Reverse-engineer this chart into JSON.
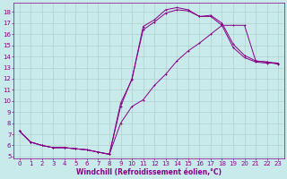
{
  "background_color": "#c8eaea",
  "line_color": "#880088",
  "grid_color": "#b0c8c8",
  "xlabel": "Windchill (Refroidissement éolien,°C)",
  "xlabel_fontsize": 5.5,
  "tick_fontsize": 5.0,
  "xlim": [
    -0.5,
    23.5
  ],
  "ylim": [
    4.8,
    18.8
  ],
  "yticks": [
    5,
    6,
    7,
    8,
    9,
    10,
    11,
    12,
    13,
    14,
    15,
    16,
    17,
    18
  ],
  "xticks": [
    0,
    1,
    2,
    3,
    4,
    5,
    6,
    7,
    8,
    9,
    10,
    11,
    12,
    13,
    14,
    15,
    16,
    17,
    18,
    19,
    20,
    21,
    22,
    23
  ],
  "line1_x": [
    0,
    1,
    2,
    3,
    4,
    5,
    6,
    7,
    8,
    9,
    10,
    11,
    12,
    13,
    14,
    15,
    16,
    17,
    18,
    19,
    20,
    21,
    22,
    23
  ],
  "line1_y": [
    7.3,
    6.3,
    6.0,
    5.8,
    5.8,
    5.7,
    5.6,
    5.4,
    5.2,
    9.5,
    12.0,
    16.4,
    17.1,
    17.9,
    18.2,
    18.1,
    17.6,
    17.6,
    16.8,
    14.8,
    13.9,
    13.5,
    13.4,
    13.4
  ],
  "line2_x": [
    0,
    1,
    2,
    3,
    4,
    5,
    6,
    7,
    8,
    9,
    10,
    11,
    12,
    13,
    14,
    15,
    16,
    17,
    18,
    19,
    20,
    21,
    22,
    23
  ],
  "line2_y": [
    7.3,
    6.3,
    6.0,
    5.8,
    5.8,
    5.7,
    5.6,
    5.4,
    5.2,
    9.8,
    11.9,
    16.7,
    17.3,
    18.2,
    18.4,
    18.2,
    17.6,
    17.7,
    17.0,
    15.1,
    14.1,
    13.6,
    13.5,
    13.3
  ],
  "line3_x": [
    0,
    1,
    2,
    3,
    4,
    5,
    6,
    7,
    8,
    9,
    10,
    11,
    12,
    13,
    14,
    15,
    16,
    17,
    18,
    19,
    20,
    21,
    22,
    23
  ],
  "line3_y": [
    7.3,
    6.3,
    6.0,
    5.8,
    5.8,
    5.7,
    5.6,
    5.4,
    5.2,
    8.0,
    9.5,
    10.1,
    11.4,
    12.4,
    13.6,
    14.5,
    15.2,
    16.0,
    16.8,
    16.8,
    16.8,
    13.6,
    13.5,
    13.4
  ]
}
